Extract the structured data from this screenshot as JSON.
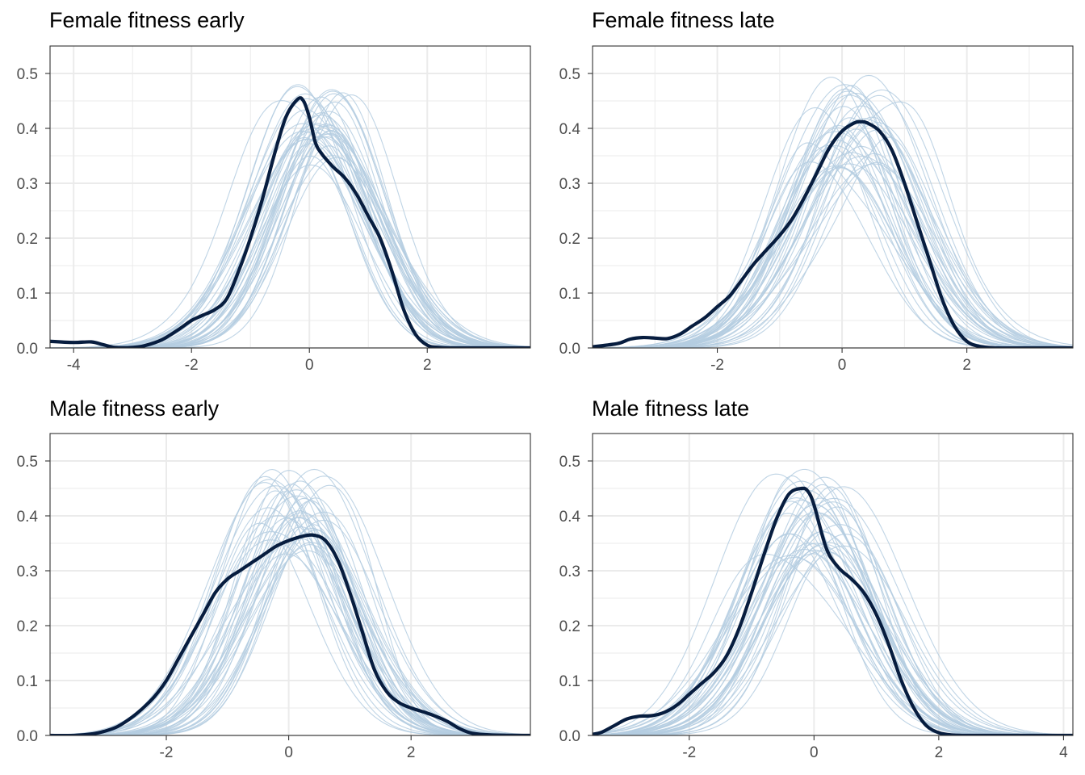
{
  "colors": {
    "replicate": "#b4cde0",
    "observed": "#071d3f",
    "grid": "#ebebeb",
    "frame": "#333333",
    "tick_text": "#4d4d4d"
  },
  "n_replicates": 40,
  "chart_data": [
    {
      "type": "line",
      "title": "Female fitness early",
      "xlim": [
        -4.4,
        3.75
      ],
      "ylim": [
        0,
        0.55
      ],
      "xticks": [
        -4,
        -2,
        0,
        2
      ],
      "xtick_labels": [
        "-4",
        "-2",
        "0",
        "2"
      ],
      "yticks": [
        0,
        0.1,
        0.2,
        0.3,
        0.4,
        0.5
      ],
      "ytick_labels": [
        "0.0",
        "0.1",
        "0.2",
        "0.3",
        "0.4",
        "0.5"
      ],
      "observed_density": {
        "x": [
          -4.4,
          -4.0,
          -3.7,
          -3.5,
          -3.3,
          -3.0,
          -2.8,
          -2.5,
          -2.2,
          -2.0,
          -1.8,
          -1.6,
          -1.4,
          -1.2,
          -1.0,
          -0.8,
          -0.6,
          -0.4,
          -0.2,
          -0.1,
          0.0,
          0.1,
          0.2,
          0.4,
          0.6,
          0.8,
          1.0,
          1.2,
          1.4,
          1.6,
          1.8,
          2.0,
          2.2,
          2.5,
          3.0,
          3.75
        ],
        "y": [
          0.012,
          0.01,
          0.011,
          0.006,
          0.001,
          0.001,
          0.004,
          0.015,
          0.035,
          0.05,
          0.06,
          0.07,
          0.09,
          0.14,
          0.2,
          0.27,
          0.35,
          0.42,
          0.453,
          0.45,
          0.42,
          0.375,
          0.355,
          0.33,
          0.31,
          0.28,
          0.24,
          0.2,
          0.14,
          0.07,
          0.025,
          0.005,
          0.001,
          0.0,
          0.0,
          0.0
        ]
      },
      "replicate_model": {
        "mu": 0.15,
        "sigma": 1.0,
        "peak_min": 0.33,
        "peak_max": 0.48
      }
    },
    {
      "type": "line",
      "title": "Female fitness late",
      "xlim": [
        -4.0,
        3.7
      ],
      "ylim": [
        0,
        0.55
      ],
      "xticks": [
        -2,
        0,
        2
      ],
      "xtick_labels": [
        "-2",
        "0",
        "2"
      ],
      "yticks": [
        0,
        0.1,
        0.2,
        0.3,
        0.4,
        0.5
      ],
      "ytick_labels": [
        "0.0",
        "0.1",
        "0.2",
        "0.3",
        "0.4",
        "0.5"
      ],
      "observed_density": {
        "x": [
          -4.0,
          -3.6,
          -3.4,
          -3.2,
          -3.0,
          -2.8,
          -2.6,
          -2.4,
          -2.2,
          -2.0,
          -1.8,
          -1.6,
          -1.4,
          -1.2,
          -1.0,
          -0.8,
          -0.6,
          -0.4,
          -0.2,
          0.0,
          0.2,
          0.3,
          0.4,
          0.6,
          0.8,
          1.0,
          1.2,
          1.4,
          1.6,
          1.8,
          2.0,
          2.2,
          2.5,
          3.0,
          3.7
        ],
        "y": [
          0.002,
          0.008,
          0.016,
          0.019,
          0.018,
          0.017,
          0.025,
          0.04,
          0.055,
          0.075,
          0.095,
          0.125,
          0.155,
          0.18,
          0.205,
          0.235,
          0.275,
          0.32,
          0.365,
          0.395,
          0.41,
          0.412,
          0.41,
          0.395,
          0.36,
          0.3,
          0.23,
          0.16,
          0.09,
          0.04,
          0.012,
          0.003,
          0.0,
          0.0,
          0.0
        ]
      },
      "replicate_model": {
        "mu": 0.15,
        "sigma": 1.0,
        "peak_min": 0.32,
        "peak_max": 0.5
      }
    },
    {
      "type": "line",
      "title": "Male fitness early",
      "xlim": [
        -3.9,
        3.95
      ],
      "ylim": [
        0,
        0.55
      ],
      "xticks": [
        -2,
        0,
        2
      ],
      "xtick_labels": [
        "-2",
        "0",
        "2"
      ],
      "yticks": [
        0,
        0.1,
        0.2,
        0.3,
        0.4,
        0.5
      ],
      "ytick_labels": [
        "0.0",
        "0.1",
        "0.2",
        "0.3",
        "0.4",
        "0.5"
      ],
      "observed_density": {
        "x": [
          -3.9,
          -3.5,
          -3.2,
          -3.0,
          -2.8,
          -2.6,
          -2.4,
          -2.2,
          -2.0,
          -1.8,
          -1.6,
          -1.4,
          -1.2,
          -1.0,
          -0.8,
          -0.6,
          -0.4,
          -0.2,
          0.0,
          0.2,
          0.4,
          0.6,
          0.8,
          1.0,
          1.2,
          1.4,
          1.6,
          1.8,
          2.0,
          2.2,
          2.4,
          2.6,
          2.8,
          3.0,
          3.3,
          3.95
        ],
        "y": [
          0.0,
          0.0,
          0.003,
          0.008,
          0.016,
          0.03,
          0.048,
          0.07,
          0.1,
          0.14,
          0.18,
          0.22,
          0.26,
          0.285,
          0.3,
          0.315,
          0.33,
          0.345,
          0.355,
          0.362,
          0.365,
          0.355,
          0.32,
          0.26,
          0.19,
          0.12,
          0.08,
          0.06,
          0.05,
          0.043,
          0.035,
          0.025,
          0.012,
          0.004,
          0.001,
          0.0
        ]
      },
      "replicate_model": {
        "mu": 0.05,
        "sigma": 1.0,
        "peak_min": 0.33,
        "peak_max": 0.49
      }
    },
    {
      "type": "line",
      "title": "Male fitness late",
      "xlim": [
        -3.55,
        4.15
      ],
      "ylim": [
        0,
        0.55
      ],
      "xticks": [
        -2,
        0,
        2,
        4
      ],
      "xtick_labels": [
        "-2",
        "0",
        "2",
        "4"
      ],
      "yticks": [
        0,
        0.1,
        0.2,
        0.3,
        0.4,
        0.5
      ],
      "ytick_labels": [
        "0.0",
        "0.1",
        "0.2",
        "0.3",
        "0.4",
        "0.5"
      ],
      "observed_density": {
        "x": [
          -3.55,
          -3.4,
          -3.2,
          -3.0,
          -2.8,
          -2.6,
          -2.4,
          -2.2,
          -2.0,
          -1.8,
          -1.6,
          -1.4,
          -1.2,
          -1.0,
          -0.8,
          -0.6,
          -0.4,
          -0.2,
          -0.1,
          0.0,
          0.2,
          0.4,
          0.6,
          0.8,
          1.0,
          1.2,
          1.4,
          1.6,
          1.8,
          2.0,
          2.2,
          2.5,
          3.0,
          3.5,
          4.15
        ],
        "y": [
          0.002,
          0.006,
          0.018,
          0.03,
          0.035,
          0.036,
          0.042,
          0.055,
          0.075,
          0.095,
          0.115,
          0.145,
          0.195,
          0.26,
          0.33,
          0.395,
          0.44,
          0.45,
          0.445,
          0.42,
          0.34,
          0.305,
          0.285,
          0.26,
          0.22,
          0.165,
          0.1,
          0.05,
          0.018,
          0.005,
          0.001,
          0.0,
          0.0,
          0.0,
          0.0
        ]
      },
      "replicate_model": {
        "mu": 0.0,
        "sigma": 1.0,
        "peak_min": 0.32,
        "peak_max": 0.49
      }
    }
  ]
}
